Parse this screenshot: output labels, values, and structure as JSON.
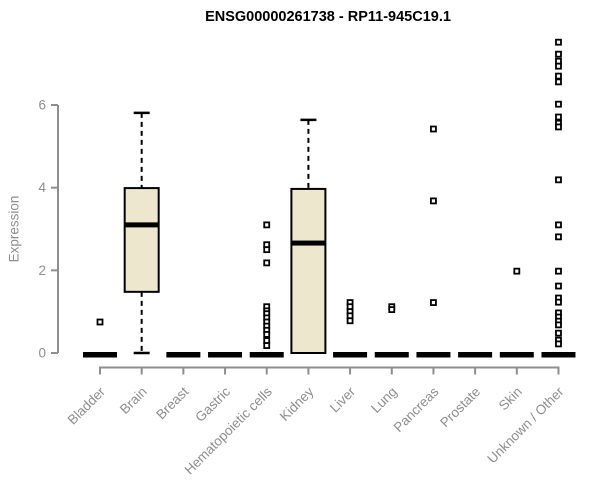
{
  "colors": {
    "background": "#FFFFFF",
    "title": "#000000",
    "axis": "#8E8E8E",
    "tick_label": "#8E8E8E",
    "box_fill": "#EDE7CE",
    "box_stroke": "#000000",
    "median": "#000000",
    "whisker": "#000000",
    "outlier_fill": "#FFFFFF",
    "outlier_stroke": "#000000"
  },
  "chart_data": {
    "type": "boxplot",
    "title": "ENSG00000261738 - RP11-945C19.1",
    "xlabel": "",
    "ylabel": "Expression",
    "yticks": [
      0,
      2,
      4,
      6
    ],
    "ylim": [
      0,
      7.8
    ],
    "grid": false,
    "legend": "none",
    "categories": [
      "Bladder",
      "Brain",
      "Breast",
      "Gastric",
      "Hematopoietic cells",
      "Kidney",
      "Liver",
      "Lung",
      "Pancreas",
      "Prostate",
      "Skin",
      "Unknown / Other"
    ],
    "boxes": [
      {
        "category": "Bladder",
        "q1": 0,
        "median": 0,
        "q3": 0,
        "whisker_low": 0,
        "whisker_high": 0,
        "outliers": [
          0.75
        ]
      },
      {
        "category": "Brain",
        "q1": 1.48,
        "median": 3.1,
        "q3": 3.99,
        "whisker_low": 0,
        "whisker_high": 5.81,
        "outliers": []
      },
      {
        "category": "Breast",
        "q1": 0,
        "median": 0,
        "q3": 0,
        "whisker_low": 0,
        "whisker_high": 0,
        "outliers": []
      },
      {
        "category": "Gastric",
        "q1": 0,
        "median": 0,
        "q3": 0,
        "whisker_low": 0,
        "whisker_high": 0,
        "outliers": []
      },
      {
        "category": "Hematopoietic cells",
        "q1": 0,
        "median": 0,
        "q3": 0,
        "whisker_low": 0,
        "whisker_high": 0,
        "outliers": [
          3.1,
          2.62,
          2.5,
          2.18,
          1.12,
          1.02,
          0.95,
          0.85,
          0.75,
          0.65,
          0.55,
          0.45,
          0.3,
          0.18
        ]
      },
      {
        "category": "Kidney",
        "q1": 0,
        "median": 2.66,
        "q3": 3.97,
        "whisker_low": 0,
        "whisker_high": 5.64,
        "outliers": []
      },
      {
        "category": "Liver",
        "q1": 0,
        "median": 0,
        "q3": 0,
        "whisker_low": 0,
        "whisker_high": 0,
        "outliers": [
          1.22,
          1.12,
          1.0,
          0.9,
          0.78
        ]
      },
      {
        "category": "Lung",
        "q1": 0,
        "median": 0,
        "q3": 0,
        "whisker_low": 0,
        "whisker_high": 0,
        "outliers": [
          1.12,
          1.05
        ]
      },
      {
        "category": "Pancreas",
        "q1": 0,
        "median": 0,
        "q3": 0,
        "whisker_low": 0,
        "whisker_high": 0,
        "outliers": [
          5.42,
          3.68,
          1.22
        ]
      },
      {
        "category": "Prostate",
        "q1": 0,
        "median": 0,
        "q3": 0,
        "whisker_low": 0,
        "whisker_high": 0,
        "outliers": []
      },
      {
        "category": "Skin",
        "q1": 0,
        "median": 0,
        "q3": 0,
        "whisker_low": 0,
        "whisker_high": 0,
        "outliers": [
          1.98
        ]
      },
      {
        "category": "Unknown / Other",
        "q1": 0,
        "median": 0,
        "q3": 0,
        "whisker_low": 0,
        "whisker_high": 0,
        "outliers": [
          7.52,
          7.23,
          7.06,
          6.94,
          6.7,
          6.56,
          6.02,
          5.71,
          5.56,
          5.47,
          4.19,
          3.1,
          2.81,
          1.98,
          1.62,
          1.33,
          1.23,
          0.97,
          0.87,
          0.77,
          0.68,
          0.48,
          0.31,
          0.22
        ]
      }
    ]
  }
}
